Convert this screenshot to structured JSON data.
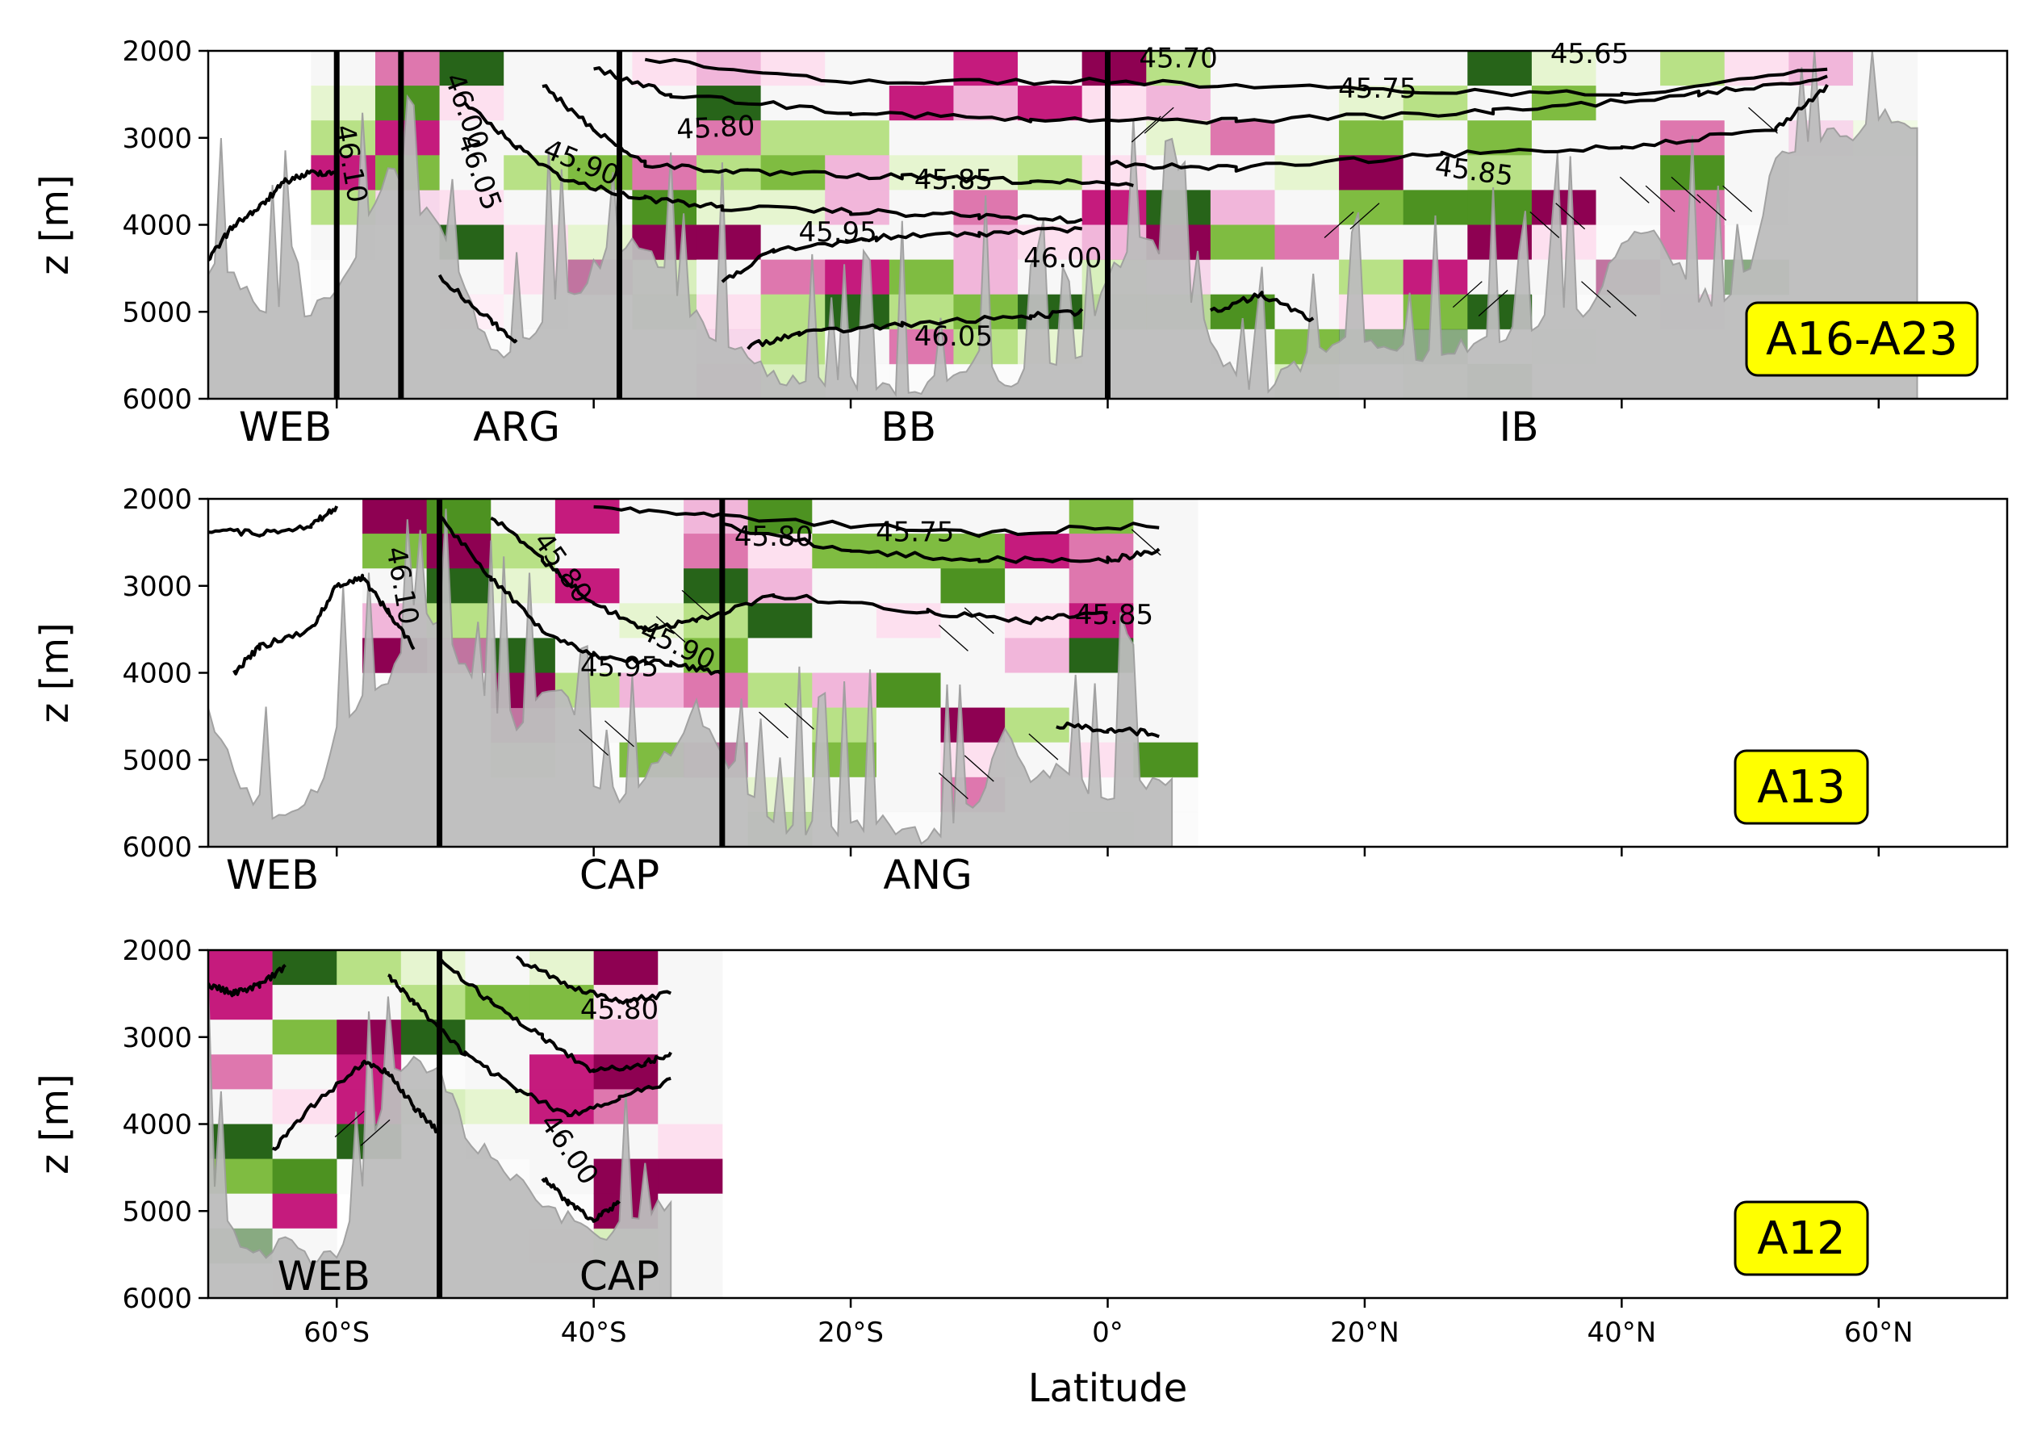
{
  "chart_data": {
    "type": "heatmap",
    "xlabel": "Latitude",
    "ylabel": "z [m]",
    "xlim": [
      -70,
      70
    ],
    "ylim": [
      6000,
      2000
    ],
    "x_ticks": [
      -60,
      -40,
      -20,
      0,
      20,
      40,
      60
    ],
    "x_tick_labels": [
      "60°S",
      "40°S",
      "20°S",
      "0°",
      "20°N",
      "40°N",
      "60°N"
    ],
    "y_ticks": [
      2000,
      3000,
      4000,
      5000,
      6000
    ],
    "y_tick_labels": [
      "2000",
      "3000",
      "4000",
      "5000",
      "6000"
    ],
    "colors": {
      "bathymetry": "#bdbdbd",
      "tag_fill": "#ffff00",
      "contour": "#000000"
    },
    "panels": [
      {
        "tag": "A16-A23",
        "bathy_extent": [
          -70,
          63
        ],
        "basin_boundaries": [
          -60,
          -55,
          -38,
          0
        ],
        "basin_labels": [
          {
            "text": "WEB",
            "lat": -64
          },
          {
            "text": "ARG",
            "lat": -46
          },
          {
            "text": "BB",
            "lat": -15.5
          },
          {
            "text": "IB",
            "lat": 32
          }
        ],
        "contour_labels": [
          {
            "text": "46.10",
            "lat": -59,
            "z": 3300,
            "rotation": 80
          },
          {
            "text": "46.00",
            "lat": -50,
            "z": 2700,
            "rotation": 70
          },
          {
            "text": "46.05",
            "lat": -49,
            "z": 3400,
            "rotation": 70
          },
          {
            "text": "45.90",
            "lat": -41,
            "z": 3300,
            "rotation": 22
          },
          {
            "text": "45.80",
            "lat": -30.5,
            "z": 2900,
            "rotation": -3
          },
          {
            "text": "45.85",
            "lat": -12,
            "z": 3500,
            "rotation": 0
          },
          {
            "text": "45.95",
            "lat": -21,
            "z": 4100,
            "rotation": 0
          },
          {
            "text": "46.00",
            "lat": -3.5,
            "z": 4400,
            "rotation": 0
          },
          {
            "text": "46.05",
            "lat": -12,
            "z": 5300,
            "rotation": 0
          },
          {
            "text": "45.70",
            "lat": 5.5,
            "z": 2100,
            "rotation": 0
          },
          {
            "text": "45.75",
            "lat": 21,
            "z": 2450,
            "rotation": 0
          },
          {
            "text": "45.65",
            "lat": 37.5,
            "z": 2050,
            "rotation": 0
          },
          {
            "text": "45.85",
            "lat": 28.5,
            "z": 3400,
            "rotation": 8
          }
        ]
      },
      {
        "tag": "A13",
        "bathy_extent": [
          -70,
          5
        ],
        "basin_boundaries": [
          -52,
          -30
        ],
        "basin_labels": [
          {
            "text": "WEB",
            "lat": -65
          },
          {
            "text": "CAP",
            "lat": -38
          },
          {
            "text": "ANG",
            "lat": -14
          }
        ],
        "contour_labels": [
          {
            "text": "46.10",
            "lat": -55,
            "z": 3000,
            "rotation": 80
          },
          {
            "text": "45.80",
            "lat": -42.5,
            "z": 2800,
            "rotation": 55
          },
          {
            "text": "45.80",
            "lat": -26,
            "z": 2450,
            "rotation": 0
          },
          {
            "text": "45.75",
            "lat": -15,
            "z": 2400,
            "rotation": 0
          },
          {
            "text": "45.90",
            "lat": -33.5,
            "z": 3700,
            "rotation": 25
          },
          {
            "text": "45.95",
            "lat": -38,
            "z": 3950,
            "rotation": 0
          },
          {
            "text": "45.85",
            "lat": 0.5,
            "z": 3350,
            "rotation": 0
          }
        ]
      },
      {
        "tag": "A12",
        "bathy_extent": [
          -70,
          -34
        ],
        "basin_boundaries": [
          -52
        ],
        "basin_labels": [
          {
            "text": "WEB",
            "lat": -61
          },
          {
            "text": "CAP",
            "lat": -38
          }
        ],
        "contour_labels": [
          {
            "text": "45.80",
            "lat": -38,
            "z": 2700,
            "rotation": 0
          },
          {
            "text": "46.00",
            "lat": -42,
            "z": 4300,
            "rotation": 55
          }
        ]
      }
    ]
  }
}
